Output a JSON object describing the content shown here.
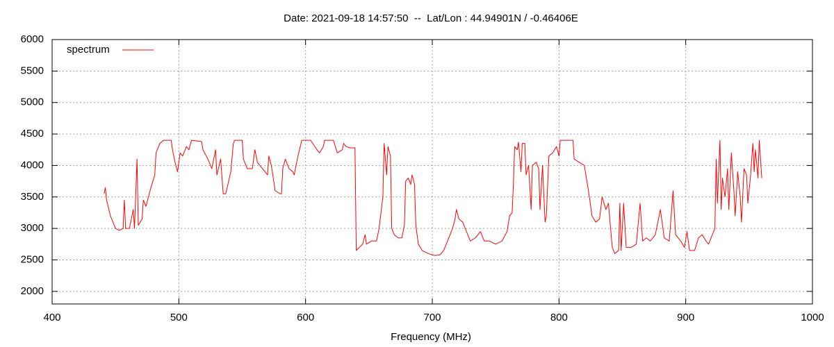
{
  "chart_data": {
    "type": "line",
    "title": "Date: 2021-09-18 14:57:50  --  Lat/Lon : 44.94901N / -0.46406E",
    "x_label": "Frequency (MHz)",
    "xlim": [
      400,
      1000
    ],
    "xticks": [
      400,
      500,
      600,
      700,
      800,
      900,
      1000
    ],
    "ylim": [
      1800,
      6000
    ],
    "yticks": [
      2000,
      2500,
      3000,
      3500,
      4000,
      4500,
      5000,
      5500,
      6000
    ],
    "grid": true,
    "legend": "top-left",
    "x": [
      441,
      442,
      443,
      446,
      450,
      453,
      456,
      457,
      458,
      461,
      464,
      465,
      467,
      468,
      471,
      472,
      474,
      478,
      481,
      482,
      485,
      488,
      494,
      495,
      497,
      499,
      501,
      503,
      506,
      508,
      510,
      518,
      519,
      523,
      526,
      529,
      530,
      533,
      535,
      537,
      541,
      543,
      544,
      550,
      551,
      554,
      558,
      560,
      562,
      566,
      570,
      571,
      573,
      576,
      580,
      581,
      582,
      584,
      587,
      590,
      591,
      594,
      597,
      604,
      609,
      611,
      614,
      615,
      622,
      625,
      629,
      630,
      632,
      635,
      639,
      640,
      645,
      647,
      648,
      652,
      656,
      658,
      661,
      662,
      664,
      665,
      667,
      668,
      670,
      673,
      676,
      678,
      679,
      681,
      683,
      684,
      686,
      687,
      689,
      692,
      697,
      702,
      706,
      709,
      712,
      716,
      718,
      719,
      721,
      724,
      727,
      730,
      734,
      738,
      741,
      745,
      750,
      755,
      759,
      761,
      763,
      764,
      765,
      767,
      768,
      770,
      771,
      773,
      774,
      776,
      778,
      779,
      782,
      784,
      785,
      787,
      789,
      790,
      792,
      795,
      798,
      800,
      801,
      811,
      812,
      816,
      820,
      822,
      824,
      826,
      829,
      832,
      834,
      837,
      839,
      842,
      844,
      847,
      848,
      849,
      851,
      853,
      857,
      861,
      864,
      866,
      869,
      872,
      876,
      880,
      883,
      887,
      890,
      892,
      896,
      899,
      901,
      903,
      907,
      910,
      913,
      916,
      918,
      921,
      923,
      924,
      925,
      927,
      928,
      929,
      931,
      933,
      934,
      936,
      938,
      939,
      941,
      943,
      944,
      946,
      948,
      949,
      951,
      953,
      954,
      955,
      957,
      958,
      960
    ],
    "series": [
      {
        "name": "spectrum",
        "color": "#ff0000",
        "values": [
          3550,
          3650,
          3450,
          3200,
          3000,
          2970,
          3000,
          3450,
          3000,
          3000,
          3300,
          3000,
          4100,
          3050,
          3150,
          3450,
          3350,
          3650,
          3850,
          4200,
          4350,
          4400,
          4400,
          4250,
          4050,
          3900,
          4200,
          4150,
          4300,
          4250,
          4400,
          4380,
          4250,
          4100,
          3950,
          4250,
          3850,
          4100,
          3550,
          3550,
          3900,
          4350,
          4400,
          4400,
          4100,
          3950,
          3950,
          4250,
          4050,
          3950,
          3850,
          4150,
          4000,
          3600,
          3550,
          3550,
          3950,
          4100,
          3950,
          3900,
          3850,
          4150,
          4400,
          4400,
          4250,
          4200,
          4300,
          4400,
          4400,
          4200,
          4250,
          4350,
          4300,
          4280,
          4280,
          2650,
          2750,
          2900,
          2750,
          2800,
          2800,
          3000,
          3500,
          4350,
          3850,
          4300,
          4150,
          3000,
          2900,
          2850,
          2850,
          3050,
          3750,
          3800,
          3700,
          3850,
          3700,
          3050,
          2750,
          2650,
          2600,
          2570,
          2580,
          2650,
          2800,
          3000,
          3150,
          3300,
          3150,
          3100,
          2950,
          2800,
          2850,
          2950,
          2800,
          2800,
          2750,
          2800,
          2950,
          3200,
          3250,
          3700,
          4300,
          4250,
          4370,
          3900,
          4350,
          4350,
          3850,
          4000,
          3300,
          4000,
          4050,
          3950,
          3300,
          4000,
          3100,
          3200,
          4150,
          4200,
          4300,
          4150,
          4400,
          4400,
          4100,
          4050,
          4000,
          3750,
          3500,
          3200,
          3100,
          3150,
          3500,
          3300,
          3400,
          2700,
          2600,
          2650,
          3400,
          2650,
          3400,
          2700,
          2700,
          2750,
          3400,
          2800,
          2850,
          2800,
          2900,
          3300,
          2850,
          2800,
          3600,
          2900,
          2800,
          2700,
          2950,
          2650,
          2650,
          2850,
          2900,
          2800,
          2750,
          2900,
          3000,
          4100,
          3400,
          4400,
          3300,
          3800,
          3500,
          3950,
          3300,
          4200,
          3600,
          3200,
          3900,
          3500,
          3100,
          3950,
          3850,
          3400,
          3800,
          4350,
          3900,
          4250,
          3800,
          4400,
          3800
        ]
      }
    ]
  }
}
